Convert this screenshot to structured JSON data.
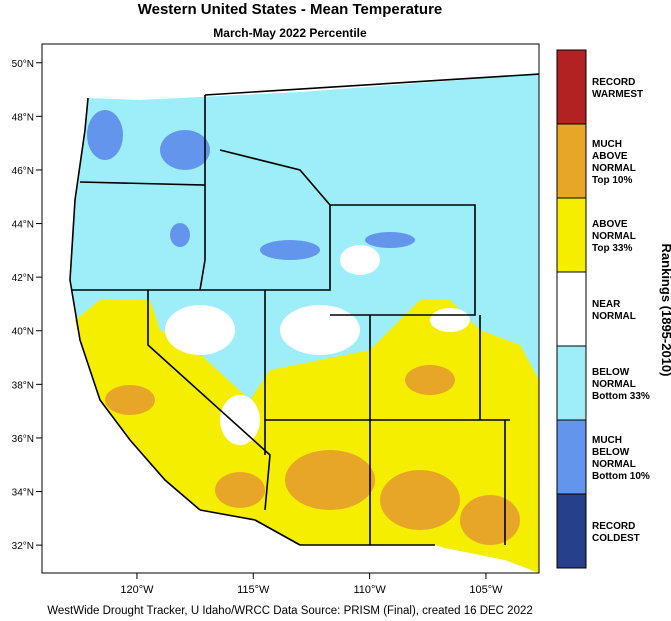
{
  "title": "Western United States - Mean Temperature",
  "subtitle": "March-May 2022 Percentile",
  "map": {
    "lon_range": [
      -124.08,
      -102.72
    ],
    "lat_range": [
      30.96,
      50.7
    ],
    "lon_ticks": [
      {
        "value": -120,
        "label": "120°W"
      },
      {
        "value": -115,
        "label": "115°W"
      },
      {
        "value": -110,
        "label": "110°W"
      },
      {
        "value": -105,
        "label": "105°W"
      }
    ],
    "lat_ticks": [
      {
        "value": 50,
        "label": "50°N"
      },
      {
        "value": 48,
        "label": "48°N"
      },
      {
        "value": 46,
        "label": "46°N"
      },
      {
        "value": 44,
        "label": "44°N"
      },
      {
        "value": 42,
        "label": "42°N"
      },
      {
        "value": 40,
        "label": "40°N"
      },
      {
        "value": 38,
        "label": "38°N"
      },
      {
        "value": 36,
        "label": "36°N"
      },
      {
        "value": 34,
        "label": "34°N"
      },
      {
        "value": 32,
        "label": "32°N"
      }
    ]
  },
  "legend": {
    "title": "Rankings (1895-2010)",
    "categories": [
      {
        "lines": [
          "RECORD",
          "WARMEST"
        ],
        "color": "#b22222"
      },
      {
        "lines": [
          "MUCH",
          "ABOVE",
          "NORMAL",
          "Top 10%"
        ],
        "color": "#e8a628"
      },
      {
        "lines": [
          "ABOVE",
          "NORMAL",
          "Top 33%"
        ],
        "color": "#f5ee00"
      },
      {
        "lines": [
          "NEAR",
          "NORMAL"
        ],
        "color": "#ffffff"
      },
      {
        "lines": [
          "BELOW",
          "NORMAL",
          "Bottom 33%"
        ],
        "color": "#9eeef9"
      },
      {
        "lines": [
          "MUCH",
          "BELOW",
          "NORMAL",
          "Bottom 10%"
        ],
        "color": "#6495ed"
      },
      {
        "lines": [
          "RECORD",
          "COLDEST"
        ],
        "color": "#27408b"
      }
    ]
  },
  "footer": "WestWide Drought Tracker, U Idaho/WRCC Data Source: PRISM (Final), created 16 DEC 2022"
}
